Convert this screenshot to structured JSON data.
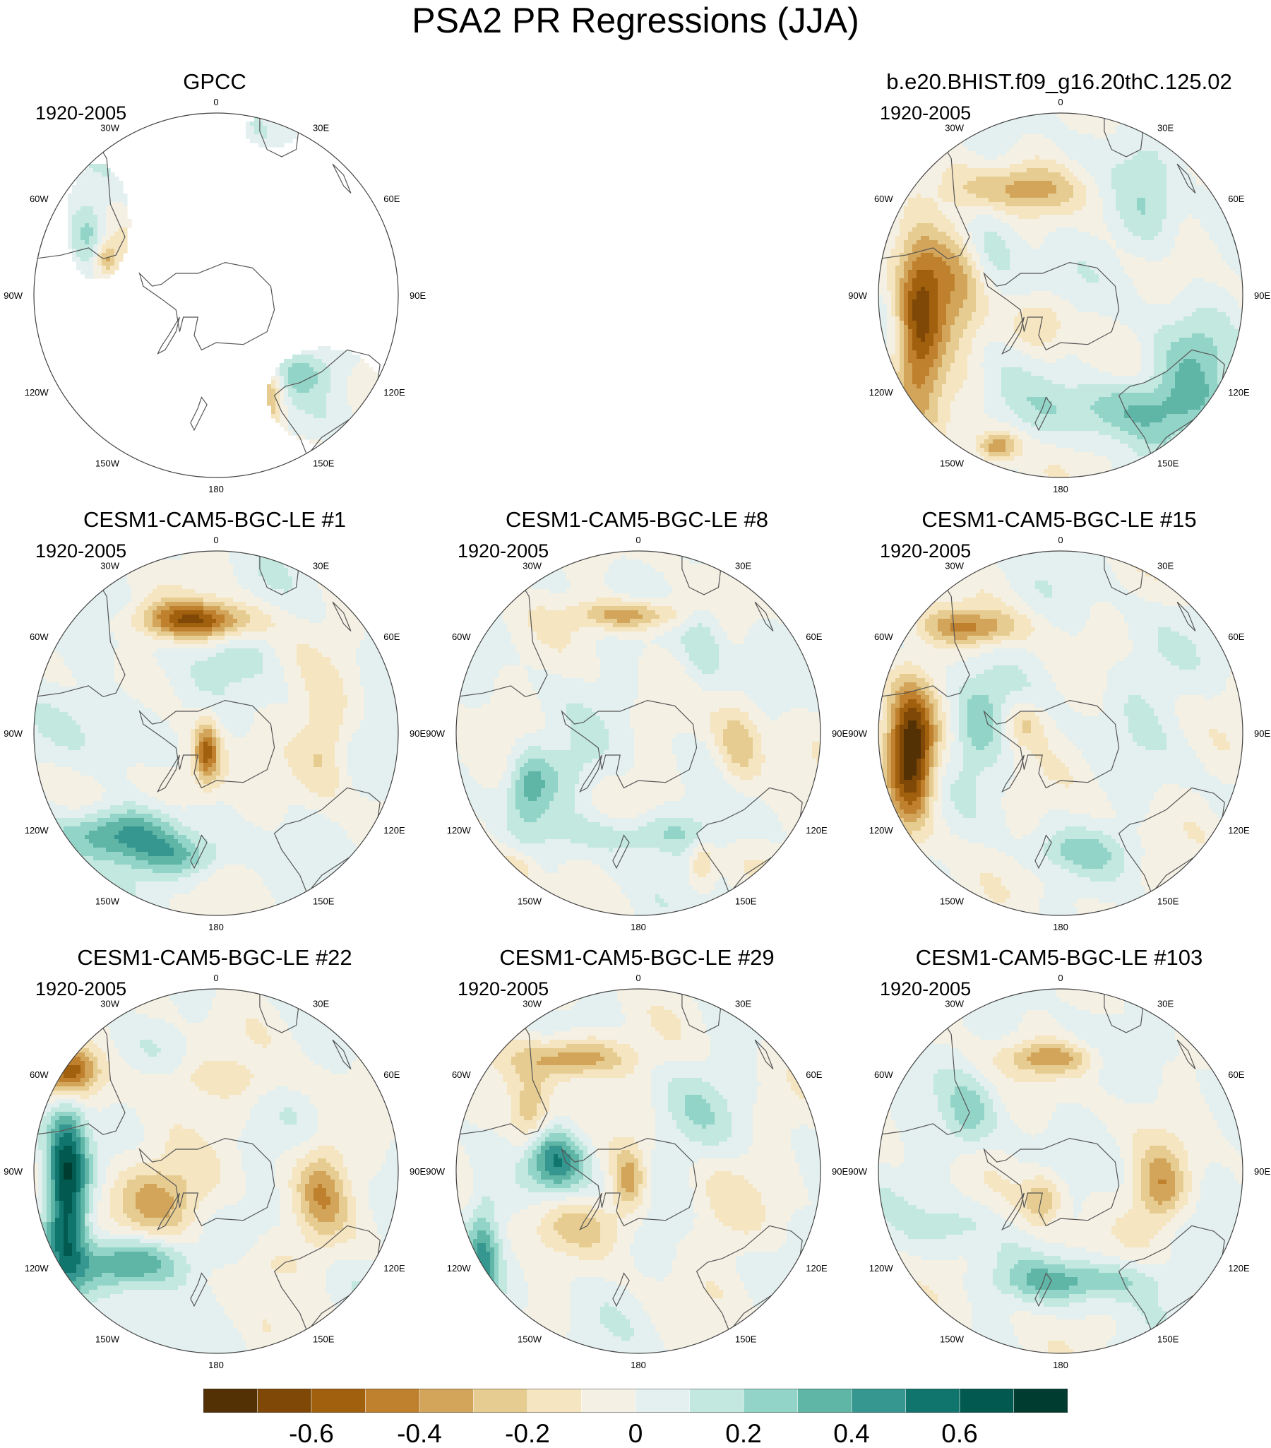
{
  "title": "PSA2 PR Regressions (JJA)",
  "lon_labels": [
    "0",
    "30E",
    "60E",
    "90E",
    "120E",
    "150E",
    "180",
    "150W",
    "120W",
    "90W",
    "60W",
    "30W"
  ],
  "panels": [
    {
      "title": "GPCC",
      "period": "1920-2005",
      "field": "obs"
    },
    {
      "title": "b.e20.BHIST.f09_g16.20thC.125.02",
      "period": "1920-2005",
      "field": "b"
    },
    {
      "title": "CESM1-CAM5-BGC-LE #1",
      "period": "1920-2005",
      "field": "m1"
    },
    {
      "title": "CESM1-CAM5-BGC-LE #8",
      "period": "1920-2005",
      "field": "m8"
    },
    {
      "title": "CESM1-CAM5-BGC-LE #15",
      "period": "1920-2005",
      "field": "m15"
    },
    {
      "title": "CESM1-CAM5-BGC-LE #22",
      "period": "1920-2005",
      "field": "m22"
    },
    {
      "title": "CESM1-CAM5-BGC-LE #29",
      "period": "1920-2005",
      "field": "m29"
    },
    {
      "title": "CESM1-CAM5-BGC-LE #103",
      "period": "1920-2005",
      "field": "m103"
    }
  ],
  "colorbar": {
    "labels": [
      "-0.6",
      "-0.4",
      "-0.2",
      "0",
      "0.2",
      "0.4",
      "0.6"
    ],
    "label_values": [
      -0.6,
      -0.4,
      -0.2,
      0,
      0.2,
      0.4,
      0.6
    ],
    "levels": [
      -0.7,
      -0.6,
      -0.5,
      -0.4,
      -0.3,
      -0.2,
      -0.1,
      0,
      0.1,
      0.2,
      0.3,
      0.4,
      0.5,
      0.6,
      0.7
    ],
    "colors": [
      "#543005",
      "#7f4806",
      "#a0600e",
      "#bf812d",
      "#d2a55a",
      "#e6cc90",
      "#f5e5c0",
      "#f5f0e4",
      "#e3f0ef",
      "#c2e8df",
      "#93d4c8",
      "#5fb5a6",
      "#35978f",
      "#10766d",
      "#01594f",
      "#003c30"
    ]
  }
}
